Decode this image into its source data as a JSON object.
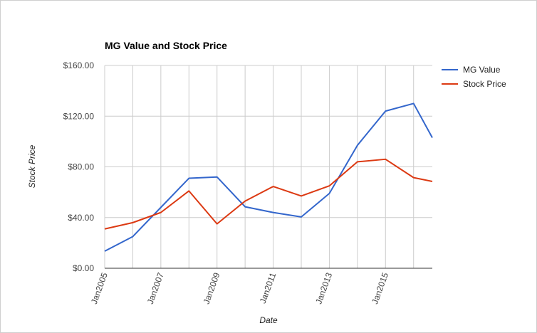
{
  "chart_data": {
    "type": "line",
    "title": "MG Value and Stock Price",
    "xlabel": "Date",
    "ylabel": "Stock Price",
    "x": [
      "2005-01",
      "2006-01",
      "2007-01",
      "2008-01",
      "2009-01",
      "2010-01",
      "2011-01",
      "2012-01",
      "2013-01",
      "2014-01",
      "2015-01",
      "2016-01",
      "2016-09"
    ],
    "x_ticks": [
      "Jan2005",
      "Jan2007",
      "Jan2009",
      "Jan2011",
      "Jan2013",
      "Jan2015"
    ],
    "y_ticks": [
      "$0.00",
      "$40.00",
      "$80.00",
      "$120.00",
      "$160.00"
    ],
    "ylim": [
      0,
      160
    ],
    "grid": true,
    "legend_position": "right",
    "series": [
      {
        "name": "MG Value",
        "color": "#3366cc",
        "values": [
          13.5,
          25,
          48,
          71,
          72,
          48.5,
          44,
          40.5,
          59,
          97,
          124,
          130,
          103
        ]
      },
      {
        "name": "Stock Price",
        "color": "#dc3912",
        "values": [
          31,
          36,
          44,
          61,
          35,
          53,
          64.5,
          57,
          65,
          84,
          86,
          71.5,
          68.5
        ]
      }
    ]
  }
}
